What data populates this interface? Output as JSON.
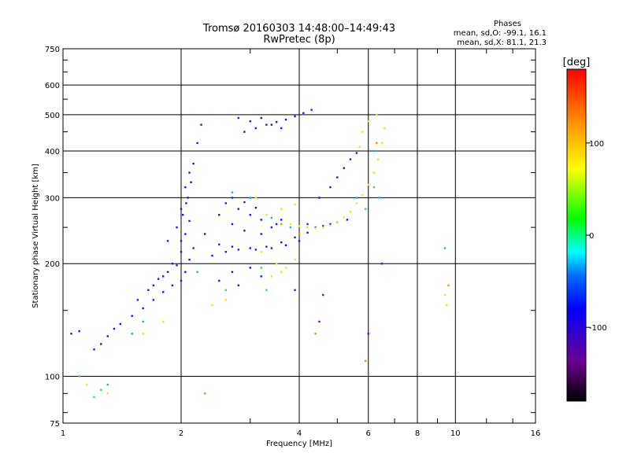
{
  "header": {
    "title_line1": "Tromsø 20160303 14:48:00–14:49:43",
    "title_line2": "RwPretec (8p)"
  },
  "stats": {
    "heading": "Phases",
    "line_o": "mean, sd,O: -99.1, 16.1",
    "line_x": "mean, sd,X:  81.1, 21.3"
  },
  "colorbar": {
    "label": "[deg]",
    "tick_labels": [
      "100",
      "0",
      "-100"
    ]
  },
  "chart_data": {
    "type": "scatter",
    "xlabel": "Frequency [MHz]",
    "ylabel": "Stationary phase Virtual Height [km]",
    "xscale": "log",
    "yscale": "log",
    "xlim": [
      1,
      16
    ],
    "ylim": [
      75,
      750
    ],
    "grid": true,
    "x_ticks": [
      1,
      2,
      4,
      6,
      8,
      10,
      16
    ],
    "x_tick_labels": [
      "1",
      "2",
      "4",
      "6",
      "8",
      "10",
      "16"
    ],
    "y_ticks": [
      75,
      100,
      200,
      300,
      400,
      500,
      600,
      750
    ],
    "y_tick_labels": [
      "75",
      "100",
      "200",
      "300",
      "400",
      "500",
      "600",
      "750"
    ],
    "colorbar_range": [
      -180,
      180
    ],
    "series": [
      {
        "points": [
          [
            1.05,
            130
          ],
          [
            1.1,
            132
          ],
          [
            1.2,
            118
          ],
          [
            1.25,
            122
          ],
          [
            1.3,
            128
          ],
          [
            1.35,
            134
          ],
          [
            1.4,
            138
          ],
          [
            1.5,
            145
          ],
          [
            1.6,
            152
          ],
          [
            1.7,
            160
          ],
          [
            1.8,
            168
          ],
          [
            1.9,
            175
          ],
          [
            2.0,
            180
          ],
          [
            2.05,
            190
          ],
          [
            2.1,
            205
          ],
          [
            2.15,
            220
          ],
          [
            2.05,
            240
          ],
          [
            2.1,
            260
          ],
          [
            2.0,
            280
          ],
          [
            2.08,
            300
          ],
          [
            2.12,
            330
          ],
          [
            2.15,
            370
          ],
          [
            2.2,
            420
          ],
          [
            2.25,
            470
          ],
          [
            1.7,
            175
          ],
          [
            1.8,
            185
          ],
          [
            1.9,
            200
          ],
          [
            2.0,
            215
          ],
          [
            1.85,
            230
          ],
          [
            1.95,
            250
          ],
          [
            2.05,
            320
          ],
          [
            2.1,
            350
          ],
          [
            1.55,
            160
          ],
          [
            1.65,
            170
          ],
          [
            1.75,
            182
          ],
          [
            1.85,
            190
          ],
          [
            1.95,
            198
          ],
          [
            2.0,
            230
          ],
          [
            2.02,
            270
          ],
          [
            2.06,
            290
          ],
          [
            2.3,
            240
          ],
          [
            2.5,
            225
          ],
          [
            2.7,
            222
          ],
          [
            3.0,
            220
          ],
          [
            3.3,
            222
          ],
          [
            3.6,
            228
          ],
          [
            3.9,
            235
          ],
          [
            4.2,
            242
          ],
          [
            2.4,
            210
          ],
          [
            2.6,
            215
          ],
          [
            2.8,
            218
          ],
          [
            3.1,
            218
          ],
          [
            3.4,
            220
          ],
          [
            3.7,
            224
          ],
          [
            4.0,
            230
          ],
          [
            2.6,
            290
          ],
          [
            2.8,
            280
          ],
          [
            3.0,
            270
          ],
          [
            3.2,
            262
          ],
          [
            3.5,
            255
          ],
          [
            2.7,
            300
          ],
          [
            2.9,
            292
          ],
          [
            3.1,
            282
          ],
          [
            2.5,
            270
          ],
          [
            2.7,
            255
          ],
          [
            2.9,
            245
          ],
          [
            3.2,
            240
          ],
          [
            3.4,
            250
          ],
          [
            3.6,
            262
          ],
          [
            2.9,
            450
          ],
          [
            3.1,
            460
          ],
          [
            3.3,
            470
          ],
          [
            3.5,
            478
          ],
          [
            3.7,
            485
          ],
          [
            3.9,
            495
          ],
          [
            4.1,
            505
          ],
          [
            4.3,
            515
          ],
          [
            3.0,
            480
          ],
          [
            3.2,
            490
          ],
          [
            3.4,
            470
          ],
          [
            3.6,
            460
          ],
          [
            2.8,
            490
          ],
          [
            4.5,
            300
          ],
          [
            4.8,
            320
          ],
          [
            5.0,
            340
          ],
          [
            5.2,
            360
          ],
          [
            5.4,
            380
          ],
          [
            5.6,
            395
          ],
          [
            4.4,
            250
          ],
          [
            4.6,
            252
          ],
          [
            4.8,
            255
          ],
          [
            5.0,
            258
          ],
          [
            5.3,
            262
          ],
          [
            2.5,
            180
          ],
          [
            2.7,
            190
          ],
          [
            3.0,
            195
          ],
          [
            3.2,
            185
          ],
          [
            2.8,
            175
          ]
        ]
      },
      {
        "points": [
          [
            3.8,
            255
          ],
          [
            4.0,
            252
          ],
          [
            4.2,
            250
          ],
          [
            4.4,
            249
          ],
          [
            4.6,
            250
          ],
          [
            4.8,
            253
          ],
          [
            5.0,
            258
          ],
          [
            5.2,
            266
          ],
          [
            5.4,
            275
          ],
          [
            5.6,
            290
          ],
          [
            5.8,
            305
          ],
          [
            6.0,
            325
          ],
          [
            6.2,
            350
          ],
          [
            6.35,
            380
          ],
          [
            6.5,
            420
          ],
          [
            6.6,
            460
          ],
          [
            3.3,
            270
          ],
          [
            3.6,
            280
          ],
          [
            3.9,
            288
          ],
          [
            3.1,
            300
          ],
          [
            3.5,
            200
          ],
          [
            3.7,
            195
          ],
          [
            3.9,
            205
          ],
          [
            3.2,
            215
          ],
          [
            3.4,
            185
          ],
          [
            3.6,
            190
          ],
          [
            2.6,
            160
          ],
          [
            2.4,
            155
          ],
          [
            1.6,
            130
          ],
          [
            1.8,
            140
          ],
          [
            1.15,
            95
          ],
          [
            1.3,
            90
          ],
          [
            5.8,
            450
          ],
          [
            6.0,
            480
          ],
          [
            6.3,
            500
          ],
          [
            5.7,
            410
          ],
          [
            9.4,
            165
          ],
          [
            9.5,
            155
          ]
        ]
      },
      {
        "points": [
          [
            1.2,
            88
          ],
          [
            1.25,
            92
          ],
          [
            3.2,
            195
          ],
          [
            3.3,
            170
          ],
          [
            2.6,
            170
          ],
          [
            5.9,
            280
          ],
          [
            6.2,
            320
          ],
          [
            1.1,
            100
          ]
        ]
      },
      {
        "points": [
          [
            1.5,
            130
          ],
          [
            1.6,
            140
          ],
          [
            2.7,
            310
          ],
          [
            3.0,
            300
          ],
          [
            3.4,
            265
          ],
          [
            3.8,
            250
          ],
          [
            2.2,
            190
          ],
          [
            5.6,
            300
          ],
          [
            6.4,
            300
          ],
          [
            6.2,
            400
          ],
          [
            9.4,
            220
          ],
          [
            1.3,
            95
          ]
        ]
      },
      {
        "points": [
          [
            3.6,
            255
          ],
          [
            4.0,
            240
          ],
          [
            2.3,
            90
          ],
          [
            4.4,
            130
          ],
          [
            5.9,
            110
          ],
          [
            6.3,
            420
          ],
          [
            9.6,
            175
          ]
        ]
      },
      {
        "points": [
          [
            4.5,
            140
          ],
          [
            6.0,
            130
          ],
          [
            4.2,
            255
          ],
          [
            3.9,
            170
          ],
          [
            6.5,
            200
          ],
          [
            4.6,
            165
          ]
        ]
      }
    ]
  }
}
